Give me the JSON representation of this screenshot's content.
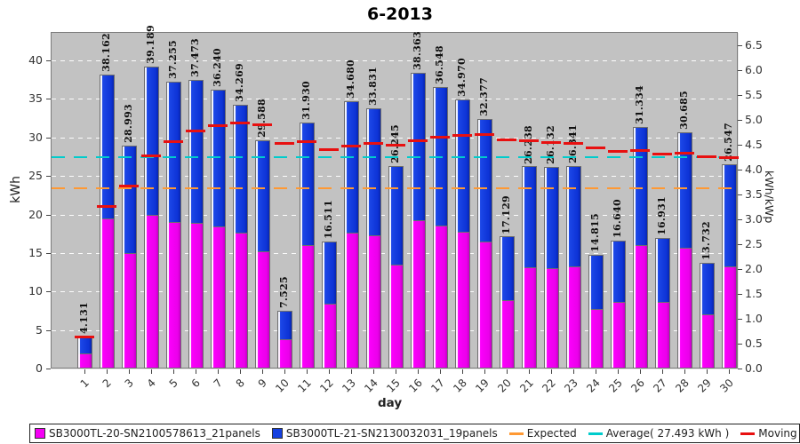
{
  "title": "6-2013",
  "axes": {
    "left": {
      "label": "kWh",
      "ticks": [
        0,
        5,
        10,
        15,
        20,
        25,
        30,
        35,
        40
      ]
    },
    "right": {
      "label": "kWh/kWp",
      "ticks": [
        "0.0",
        "0.5",
        "1.0",
        "1.5",
        "2.0",
        "2.5",
        "3.0",
        "3.5",
        "4.0",
        "4.5",
        "5.0",
        "5.5",
        "6.0",
        "6.5"
      ]
    },
    "x": {
      "label": "day",
      "ticks": [
        "1",
        "2",
        "3",
        "4",
        "5",
        "6",
        "7",
        "8",
        "9",
        "10",
        "11",
        "12",
        "13",
        "14",
        "15",
        "16",
        "17",
        "18",
        "19",
        "20",
        "21",
        "22",
        "23",
        "24",
        "25",
        "26",
        "27",
        "28",
        "29",
        "30"
      ]
    }
  },
  "legend": {
    "items": [
      {
        "swatch": "box",
        "color": "#f400f4",
        "label": "SB3000TL-20-SN2100578613_21panels"
      },
      {
        "swatch": "box",
        "color": "#1540e0",
        "label": "SB3000TL-21-SN2130032031_19panels"
      },
      {
        "swatch": "line",
        "color": "#ff9933",
        "label": "Expected"
      },
      {
        "swatch": "line",
        "color": "#00cccc",
        "label": "Average( 27.493 kWh )"
      },
      {
        "swatch": "line",
        "color": "#e81010",
        "label": "Moving avg. per day."
      }
    ]
  },
  "chart_data": {
    "type": "bar",
    "stacked": true,
    "title": "6-2013",
    "xlabel": "day",
    "ylabel": "kWh",
    "y2label": "kWh/kWp",
    "ylim": [
      0,
      43.7
    ],
    "y2lim": [
      0,
      6.77
    ],
    "grid": "horizontal-white-dashed",
    "legend_position": "bottom",
    "categories": [
      1,
      2,
      3,
      4,
      5,
      6,
      7,
      8,
      9,
      10,
      11,
      12,
      13,
      14,
      15,
      16,
      17,
      18,
      19,
      20,
      21,
      22,
      23,
      24,
      25,
      26,
      27,
      28,
      29,
      30
    ],
    "series": [
      {
        "name": "SB3000TL-20-SN2100578613_21panels",
        "color": "#f400f4",
        "values": [
          2.0,
          19.5,
          15.0,
          20.0,
          19.0,
          18.9,
          18.5,
          17.6,
          15.2,
          3.8,
          16.0,
          8.4,
          17.6,
          17.3,
          13.5,
          19.2,
          18.6,
          17.7,
          16.5,
          8.9,
          13.2,
          13.0,
          13.3,
          7.7,
          8.7,
          16.0,
          8.7,
          15.7,
          7.0,
          13.3
        ]
      },
      {
        "name": "SB3000TL-21-SN2130032031_19panels",
        "color": "#1540e0",
        "values": [
          2.131,
          18.662,
          13.993,
          19.189,
          18.255,
          18.573,
          17.74,
          16.669,
          14.388,
          3.725,
          15.93,
          8.111,
          17.08,
          16.531,
          12.745,
          19.163,
          17.948,
          17.27,
          15.877,
          8.229,
          13.038,
          13.132,
          13.041,
          7.115,
          7.94,
          15.334,
          8.231,
          14.985,
          6.732,
          13.247
        ]
      }
    ],
    "totals": [
      4.131,
      38.162,
      28.993,
      39.189,
      37.255,
      37.473,
      36.24,
      34.269,
      29.588,
      7.525,
      31.93,
      16.511,
      34.68,
      33.831,
      26.245,
      38.363,
      36.548,
      34.97,
      32.377,
      17.129,
      26.238,
      26.132,
      26.341,
      14.815,
      16.64,
      31.334,
      16.931,
      30.685,
      13.732,
      26.547
    ],
    "total_labels": [
      "4.131",
      "38.162",
      "28.993",
      "39.189",
      "37.255",
      "37.473",
      "36.240",
      "34.269",
      "29.588",
      "7.525",
      "31.930",
      "16.511",
      "34.680",
      "33.831",
      "26.245",
      "38.363",
      "36.548",
      "34.970",
      "32.377",
      "17.129",
      "26.238",
      "26.132",
      "26.341",
      "14.815",
      "16.640",
      "31.334",
      "16.931",
      "30.685",
      "13.732",
      "26.547"
    ],
    "moving_avg": [
      4.131,
      21.147,
      23.762,
      27.619,
      29.546,
      30.867,
      31.635,
      31.964,
      31.7,
      29.283,
      29.523,
      28.439,
      28.919,
      29.27,
      29.068,
      29.649,
      30.055,
      30.328,
      30.436,
      29.77,
      29.602,
      29.444,
      29.31,
      28.706,
      28.223,
      28.343,
      27.92,
      28.019,
      27.526,
      27.493
    ],
    "average_kwh": 27.493,
    "expected_kwh": 23.4
  }
}
